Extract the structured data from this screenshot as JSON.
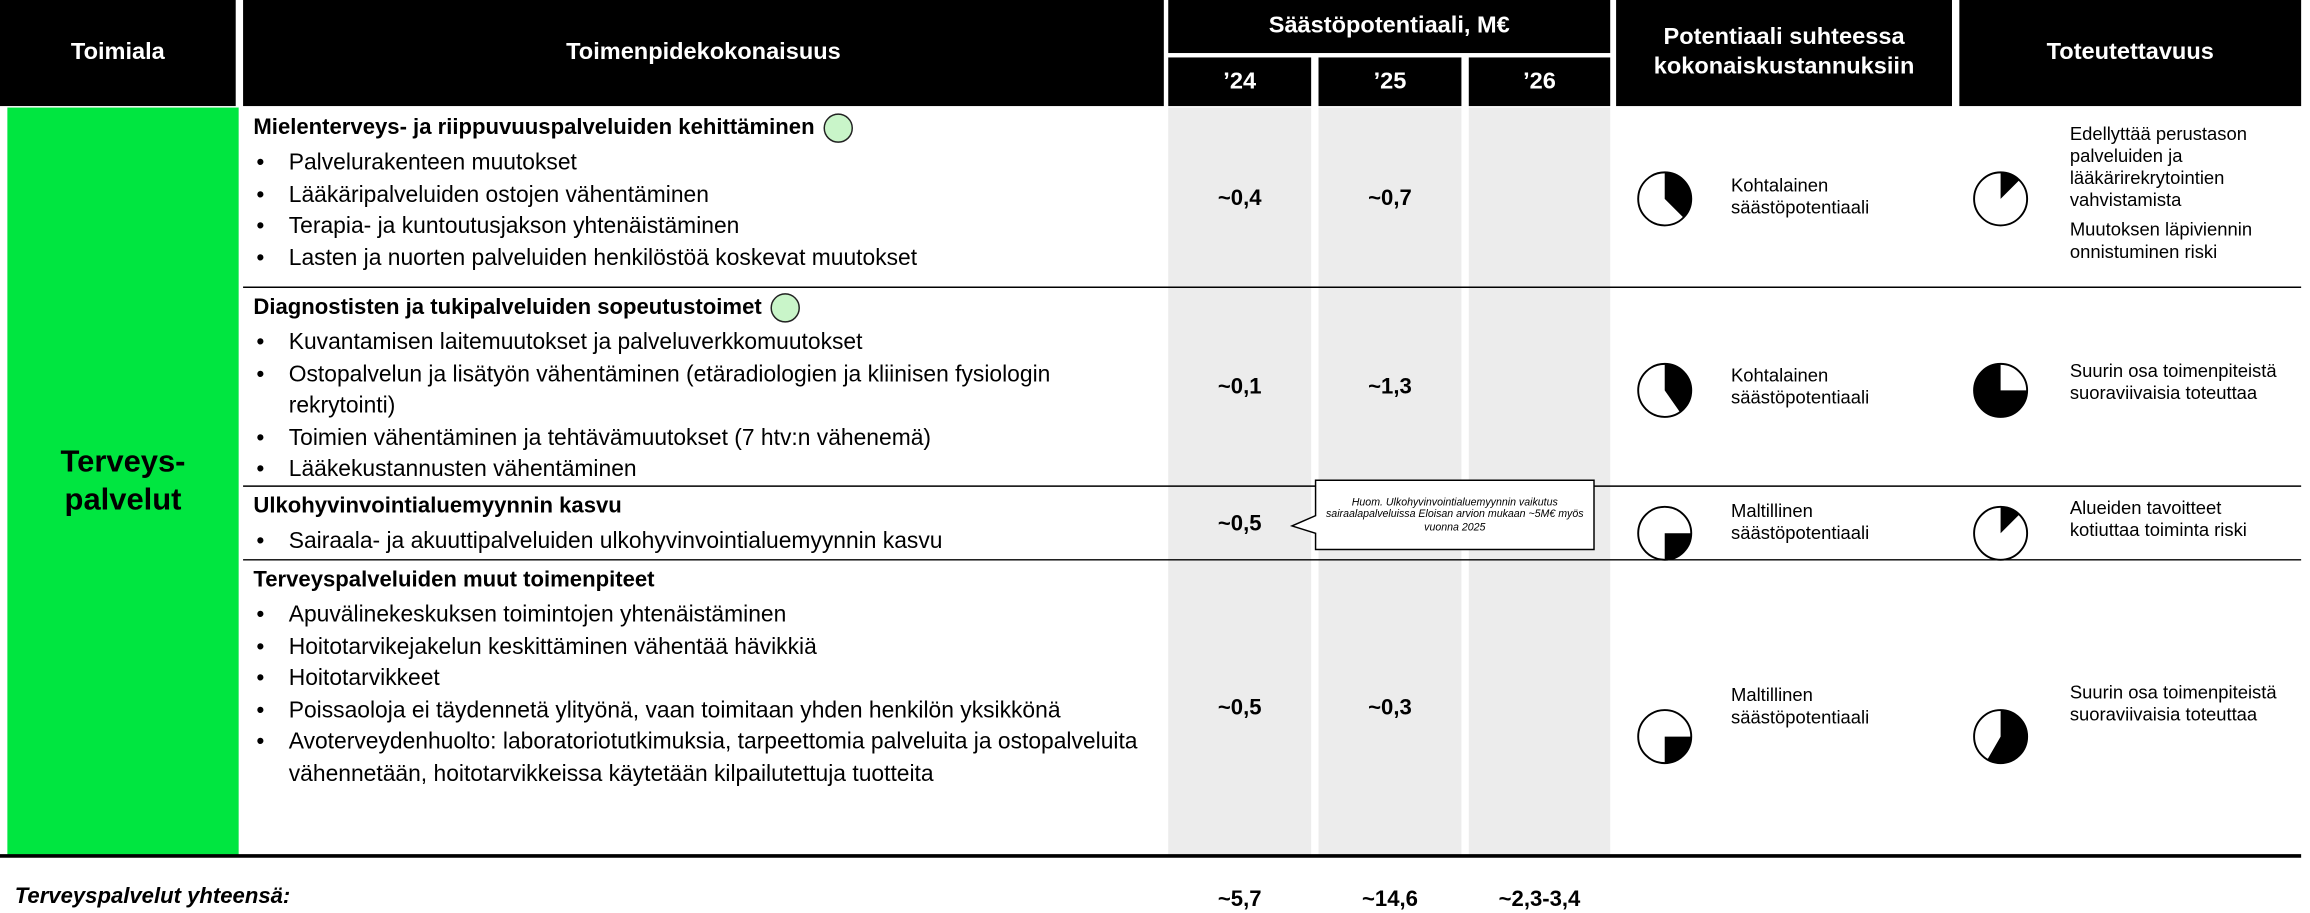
{
  "header": {
    "sector": "Toimiala",
    "measures": "Toimenpidekokonaisuus",
    "savings": "Säästöpotentiaali, M€",
    "years": [
      "’24",
      "’25",
      "’26"
    ],
    "potential": "Potentiaali suhteessa kokonaiskustannuksiin",
    "feasibility": "Toteutettavuus"
  },
  "sector": [
    "Terveys-",
    "palvelut"
  ],
  "rows": [
    {
      "title": "Mielenterveys- ja riippuvuuspalveluiden kehittäminen",
      "bullets": [
        "Palvelurakenteen muutokset",
        "Lääkäripalveluiden ostojen vähentäminen",
        "Terapia- ja kuntoutusjakson yhtenäistäminen",
        "Lasten ja nuorten palveluiden henkilöstöä koskevat muutokset"
      ],
      "values": [
        "~0,4",
        "~0,7",
        null
      ],
      "potential": "Kohtalainen säästöpotentiaali",
      "feasibility": [
        "Edellyttää perustason palveluiden ja lääkärirekrytointien vahvistamista",
        "Muutoksen läpiviennin onnistuminen riski"
      ]
    },
    {
      "title": "Diagnostisten ja tukipalveluiden sopeutustoimet",
      "bullets": [
        "Kuvantamisen laitemuutokset ja palveluverkkomuutokset",
        "Ostopalvelun ja lisätyön vähentäminen (etäradiologien ja kliinisen fysiologin rekrytointi)",
        "Toimien vähentäminen ja tehtävämuutokset (7 htv:n vähenemä)",
        "Lääkekustannusten vähentäminen"
      ],
      "values": [
        "~0,1",
        "~1,3",
        null
      ],
      "potential": "Kohtalainen säästöpotentiaali",
      "feasibility": [
        "Suurin osa toimenpiteistä suoraviivaisia toteuttaa"
      ]
    },
    {
      "title": "Ulkohyvinvointialuemyynnin kasvu",
      "bullets": [
        "Sairaala- ja akuuttipalveluiden ulkohyvinvointialuemyynnin kasvu"
      ],
      "values": [
        "~0,5",
        null,
        null
      ],
      "potential": "Maltillinen säästöpotentiaali",
      "feasibility": [
        "Alueiden tavoitteet kotiuttaa toiminta riski"
      ]
    },
    {
      "title": "Terveyspalveluiden muut toimenpiteet",
      "bullets": [
        "Apuvälinekeskuksen toimintojen yhtenäistäminen",
        "Hoitotarvikejakelun keskittäminen vähentää hävikkiä",
        "Hoitotarvikkeet",
        "Poissaoloja ei täydennetä ylityönä, vaan toimitaan yhden henkilön yksikkönä",
        "Avoterveydenhuolto: laboratoriotutkimuksia, tarpeettomia palveluita ja ostopalveluita vähennetään, hoitotarvikkeissa käytetään kilpailutettuja tuotteita"
      ],
      "values": [
        "~0,5",
        "~0,3",
        null
      ],
      "potential": "Maltillinen säästöpotentiaali",
      "feasibility": [
        "Suurin osa toimenpiteistä suoraviivaisia toteuttaa"
      ]
    }
  ],
  "note": "Huom. Ulkohyvinvointialuemyynnin vaikutus sairaalapalveluissa Eloisan arvion mukaan ~5M€ myös vuonna 2025",
  "total": {
    "label": "Terveyspalvelut yhteensä:",
    "values": [
      "~5,7",
      "~14,6",
      "~2,3-3,4"
    ]
  }
}
